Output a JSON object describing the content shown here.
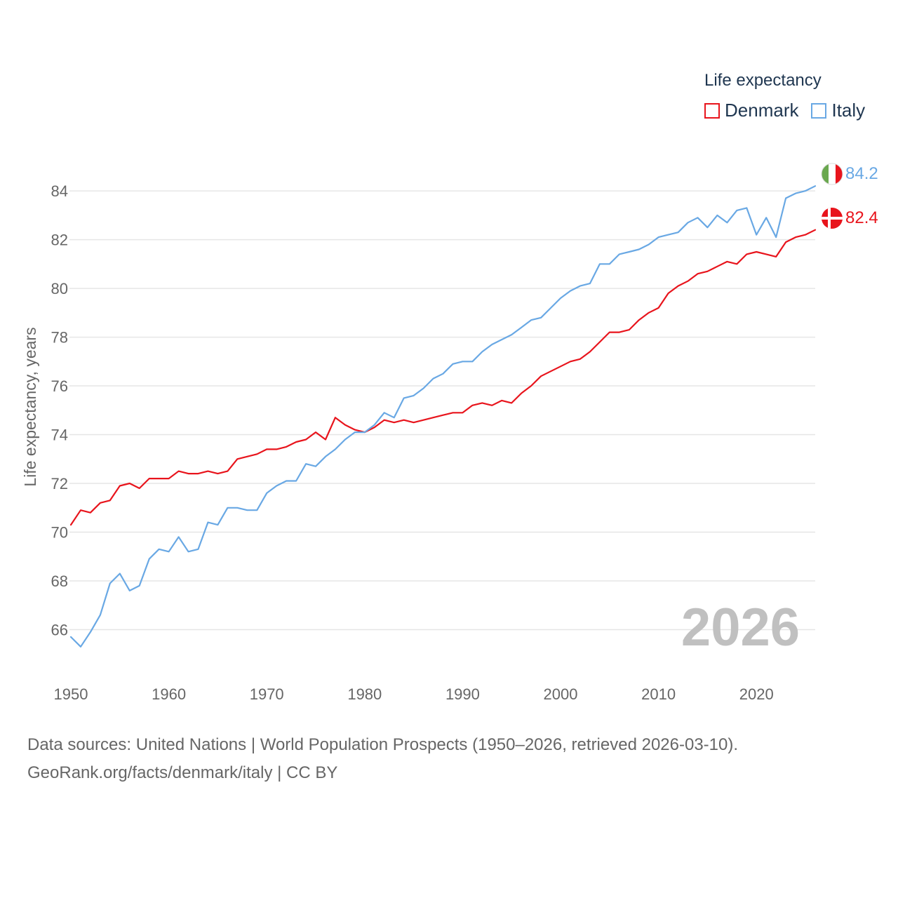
{
  "legend": {
    "title": "Life expectancy"
  },
  "source": {
    "line1": "Data sources: United Nations | World Population Prospects (1950–2026, retrieved 2026-03-10).",
    "line2": "GeoRank.org/facts/denmark/italy | CC BY"
  },
  "colors": {
    "denmark": "#e8141c",
    "italy": "#69a8e4",
    "grid": "#e6e6e6",
    "year_watermark": "#c0c0c0"
  },
  "chart_data": {
    "type": "line",
    "title": "",
    "xlabel": "",
    "ylabel": "Life expectancy, years",
    "year_label": "2026",
    "xlim": [
      1950,
      2026
    ],
    "ylim": [
      64.2,
      85.5
    ],
    "x_ticks": [
      1950,
      1960,
      1970,
      1980,
      1990,
      2000,
      2010,
      2020
    ],
    "y_ticks": [
      66,
      68,
      70,
      72,
      74,
      76,
      78,
      80,
      82,
      84
    ],
    "x": [
      1950,
      1951,
      1952,
      1953,
      1954,
      1955,
      1956,
      1957,
      1958,
      1959,
      1960,
      1961,
      1962,
      1963,
      1964,
      1965,
      1966,
      1967,
      1968,
      1969,
      1970,
      1971,
      1972,
      1973,
      1974,
      1975,
      1976,
      1977,
      1978,
      1979,
      1980,
      1981,
      1982,
      1983,
      1984,
      1985,
      1986,
      1987,
      1988,
      1989,
      1990,
      1991,
      1992,
      1993,
      1994,
      1995,
      1996,
      1997,
      1998,
      1999,
      2000,
      2001,
      2002,
      2003,
      2004,
      2005,
      2006,
      2007,
      2008,
      2009,
      2010,
      2011,
      2012,
      2013,
      2014,
      2015,
      2016,
      2017,
      2018,
      2019,
      2020,
      2021,
      2022,
      2023,
      2024,
      2025,
      2026
    ],
    "series": [
      {
        "name": "Denmark",
        "color": "#e8141c",
        "end_label": "82.4",
        "values": [
          70.3,
          70.9,
          70.8,
          71.2,
          71.3,
          71.9,
          72.0,
          71.8,
          72.2,
          72.2,
          72.2,
          72.5,
          72.4,
          72.4,
          72.5,
          72.4,
          72.5,
          73.0,
          73.1,
          73.2,
          73.4,
          73.4,
          73.5,
          73.7,
          73.8,
          74.1,
          73.8,
          74.7,
          74.4,
          74.2,
          74.1,
          74.3,
          74.6,
          74.5,
          74.6,
          74.5,
          74.6,
          74.7,
          74.8,
          74.9,
          74.9,
          75.2,
          75.3,
          75.2,
          75.4,
          75.3,
          75.7,
          76.0,
          76.4,
          76.6,
          76.8,
          77.0,
          77.1,
          77.4,
          77.8,
          78.2,
          78.2,
          78.3,
          78.7,
          79.0,
          79.2,
          79.8,
          80.1,
          80.3,
          80.6,
          80.7,
          80.9,
          81.1,
          81.0,
          81.4,
          81.5,
          81.4,
          81.3,
          81.9,
          82.1,
          82.2,
          82.4
        ]
      },
      {
        "name": "Italy",
        "color": "#69a8e4",
        "end_label": "84.2",
        "values": [
          65.7,
          65.3,
          65.9,
          66.6,
          67.9,
          68.3,
          67.6,
          67.8,
          68.9,
          69.3,
          69.2,
          69.8,
          69.2,
          69.3,
          70.4,
          70.3,
          71.0,
          71.0,
          70.9,
          70.9,
          71.6,
          71.9,
          72.1,
          72.1,
          72.8,
          72.7,
          73.1,
          73.4,
          73.8,
          74.1,
          74.1,
          74.4,
          74.9,
          74.7,
          75.5,
          75.6,
          75.9,
          76.3,
          76.5,
          76.9,
          77.0,
          77.0,
          77.4,
          77.7,
          77.9,
          78.1,
          78.4,
          78.7,
          78.8,
          79.2,
          79.6,
          79.9,
          80.1,
          80.2,
          81.0,
          81.0,
          81.4,
          81.5,
          81.6,
          81.8,
          82.1,
          82.2,
          82.3,
          82.7,
          82.9,
          82.5,
          83.0,
          82.7,
          83.2,
          83.3,
          82.2,
          82.9,
          82.1,
          83.7,
          83.9,
          84.0,
          84.2
        ]
      }
    ]
  }
}
